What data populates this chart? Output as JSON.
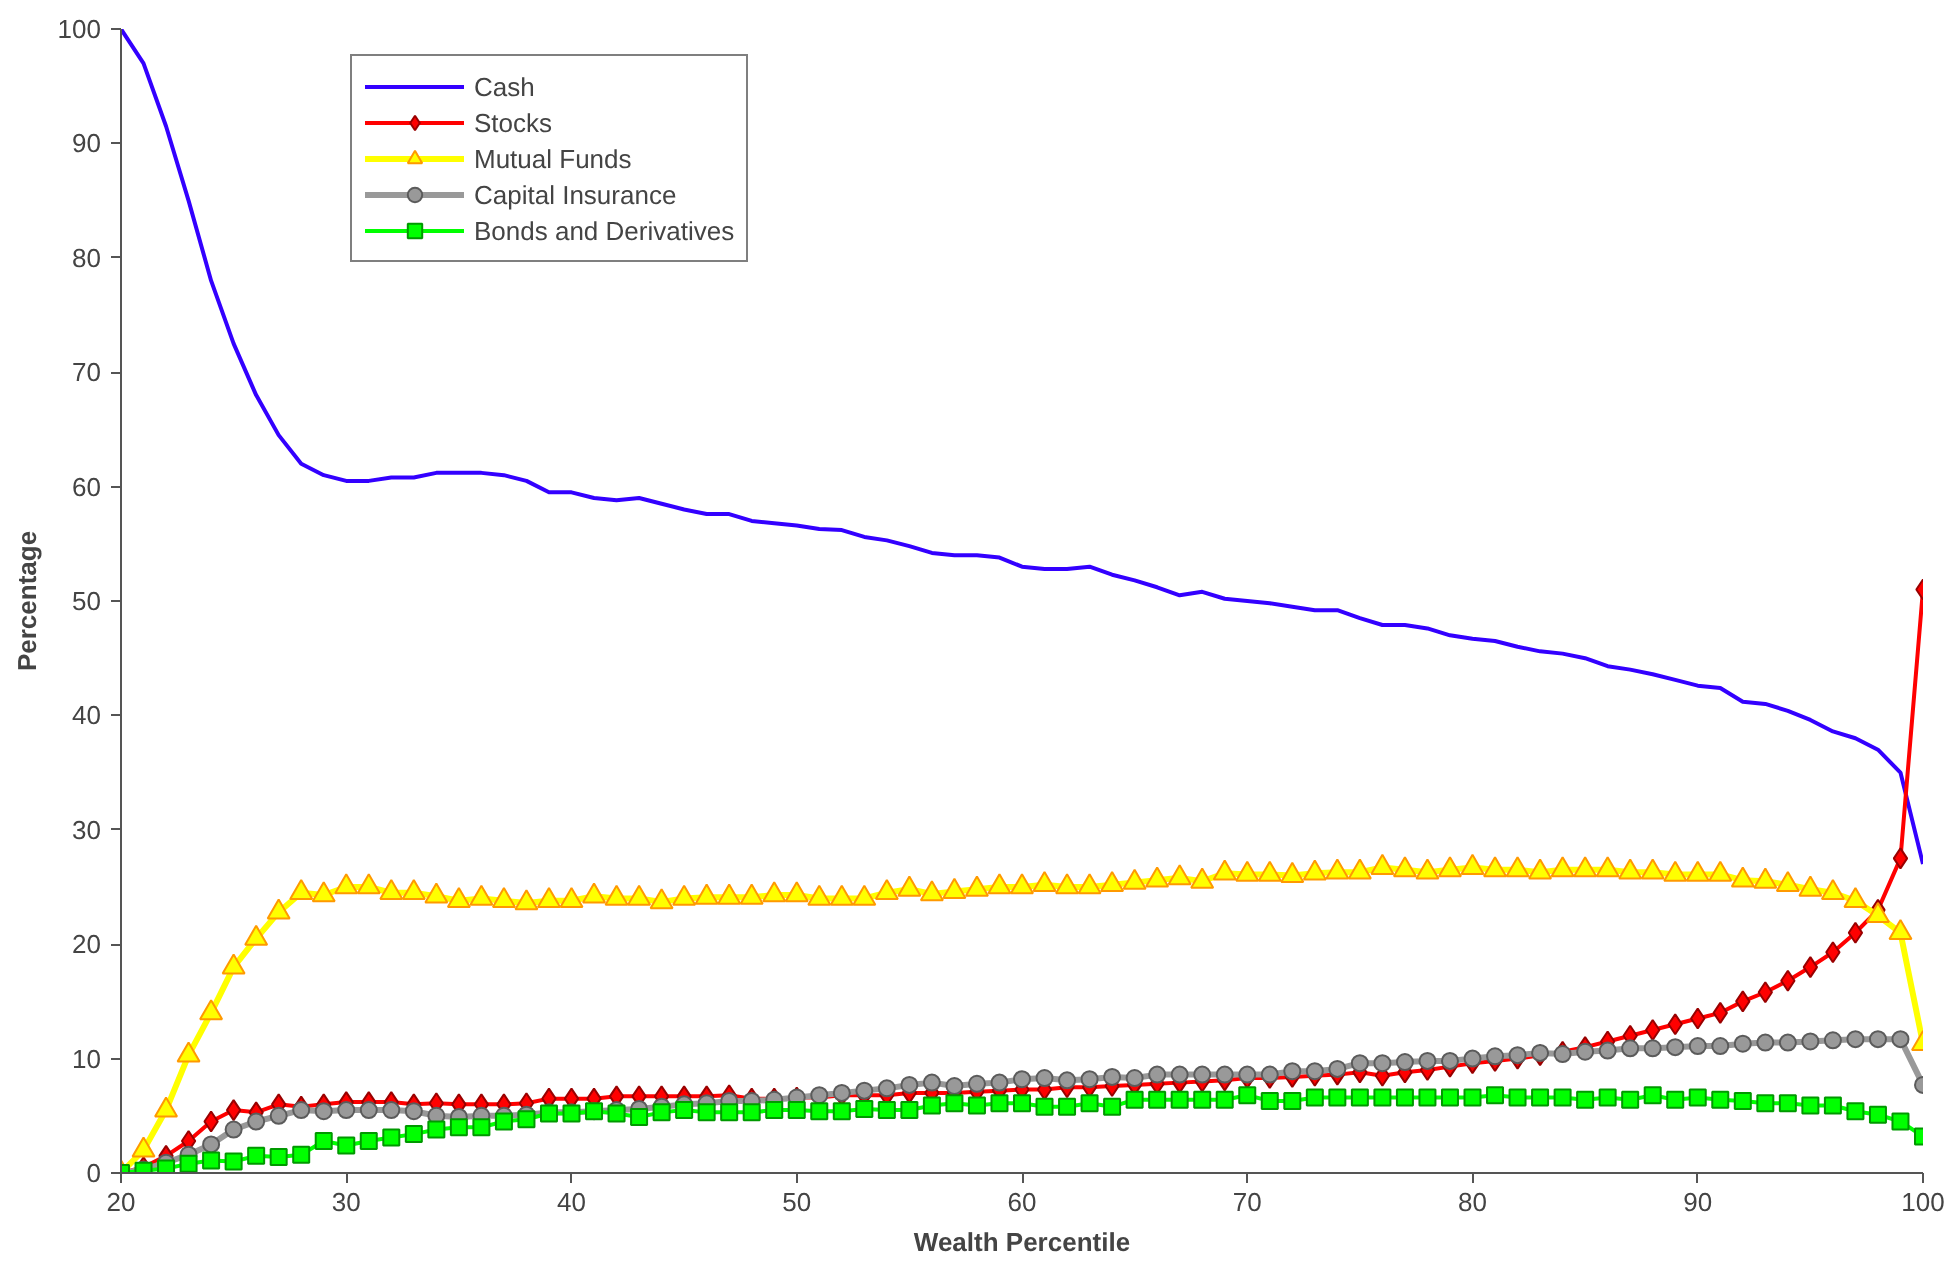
{
  "chart_data": {
    "type": "line",
    "xlabel": "Wealth Percentile",
    "ylabel": "Percentage",
    "x": [
      20,
      21,
      22,
      23,
      24,
      25,
      26,
      27,
      28,
      29,
      30,
      31,
      32,
      33,
      34,
      35,
      36,
      37,
      38,
      39,
      40,
      41,
      42,
      43,
      44,
      45,
      46,
      47,
      48,
      49,
      50,
      51,
      52,
      53,
      54,
      55,
      56,
      57,
      58,
      59,
      60,
      61,
      62,
      63,
      64,
      65,
      66,
      67,
      68,
      69,
      70,
      71,
      72,
      73,
      74,
      75,
      76,
      77,
      78,
      79,
      80,
      81,
      82,
      83,
      84,
      85,
      86,
      87,
      88,
      89,
      90,
      91,
      92,
      93,
      94,
      95,
      96,
      97,
      98,
      99,
      100
    ],
    "xlim": [
      20,
      100
    ],
    "xticks": [
      20,
      30,
      40,
      50,
      60,
      70,
      80,
      90,
      100
    ],
    "ylim": [
      0,
      100
    ],
    "yticks": [
      0,
      10,
      20,
      30,
      40,
      50,
      60,
      70,
      80,
      90,
      100
    ],
    "grid": false,
    "legend": "top left",
    "series": [
      {
        "name": "Cash",
        "color": "#3300ff",
        "marker": "none",
        "values": [
          100,
          97,
          91.5,
          85,
          78,
          72.5,
          68,
          64.5,
          62,
          61,
          60.5,
          60.5,
          60.8,
          60.8,
          61.2,
          61.2,
          61.2,
          61,
          60.5,
          59.5,
          59.5,
          59,
          58.8,
          59,
          58.5,
          58,
          57.6,
          57.6,
          57,
          56.8,
          56.6,
          56.3,
          56.2,
          55.6,
          55.3,
          54.8,
          54.2,
          54,
          54,
          53.8,
          53,
          52.8,
          52.8,
          53,
          52.3,
          51.8,
          51.2,
          50.5,
          50.8,
          50.2,
          50,
          49.8,
          49.5,
          49.2,
          49.2,
          48.5,
          47.9,
          47.9,
          47.6,
          47,
          46.7,
          46.5,
          46,
          45.6,
          45.4,
          45,
          44.3,
          44,
          43.6,
          43.1,
          42.6,
          42.4,
          41.2,
          41,
          40.4,
          39.6,
          38.6,
          38,
          37,
          35,
          27
        ]
      },
      {
        "name": "Stocks",
        "color": "#ff0000",
        "marker": "diamond",
        "values": [
          0,
          0.5,
          1.5,
          2.8,
          4.5,
          5.5,
          5.3,
          6,
          5.8,
          6,
          6.2,
          6.2,
          6.2,
          6,
          6.1,
          6,
          6,
          6,
          6.1,
          6.5,
          6.5,
          6.5,
          6.7,
          6.7,
          6.7,
          6.7,
          6.7,
          6.8,
          6.5,
          6.5,
          6.6,
          6.6,
          6.8,
          6.8,
          6.8,
          7,
          7,
          7,
          7.1,
          7.2,
          7.3,
          7.3,
          7.5,
          7.5,
          7.6,
          7.7,
          7.8,
          7.9,
          8,
          8.1,
          8.3,
          8.3,
          8.4,
          8.5,
          8.6,
          8.8,
          8.5,
          8.8,
          9,
          9.3,
          9.6,
          9.8,
          10,
          10.3,
          10.6,
          11,
          11.5,
          12,
          12.5,
          13,
          13.5,
          14,
          15,
          15.8,
          16.8,
          18,
          19.3,
          21,
          23,
          27.5,
          51
        ]
      },
      {
        "name": "Mutual Funds",
        "color": "#ffff00",
        "marker": "triangle",
        "values": [
          0,
          2,
          5.5,
          10.3,
          14,
          18,
          20.5,
          22.8,
          24.5,
          24.3,
          25,
          25,
          24.5,
          24.5,
          24.2,
          23.8,
          24,
          23.8,
          23.6,
          23.8,
          23.8,
          24.2,
          24,
          24,
          23.7,
          24,
          24.1,
          24.1,
          24.1,
          24.3,
          24.3,
          24,
          24,
          24,
          24.5,
          24.8,
          24.4,
          24.6,
          24.8,
          25,
          25,
          25.2,
          25,
          25,
          25.2,
          25.4,
          25.6,
          25.8,
          25.5,
          26.2,
          26.1,
          26.1,
          26,
          26.2,
          26.3,
          26.3,
          26.7,
          26.5,
          26.3,
          26.5,
          26.7,
          26.5,
          26.5,
          26.3,
          26.5,
          26.5,
          26.5,
          26.3,
          26.3,
          26.1,
          26.1,
          26.1,
          25.6,
          25.5,
          25.2,
          24.8,
          24.5,
          23.8,
          22.5,
          21,
          11.3
        ]
      },
      {
        "name": "Capital Insurance",
        "color": "#999999",
        "marker": "circle",
        "values": [
          0,
          0.3,
          0.9,
          1.6,
          2.5,
          3.8,
          4.5,
          5,
          5.5,
          5.4,
          5.5,
          5.5,
          5.5,
          5.4,
          5,
          4.9,
          5,
          5,
          5.1,
          5.3,
          5.3,
          5.4,
          5.5,
          5.6,
          5.8,
          6,
          6.1,
          6.3,
          6.3,
          6.4,
          6.6,
          6.8,
          7,
          7.2,
          7.4,
          7.7,
          7.9,
          7.6,
          7.8,
          7.9,
          8.2,
          8.3,
          8.1,
          8.2,
          8.4,
          8.3,
          8.6,
          8.6,
          8.6,
          8.6,
          8.6,
          8.6,
          8.9,
          8.9,
          9.1,
          9.6,
          9.6,
          9.7,
          9.8,
          9.8,
          10,
          10.2,
          10.3,
          10.5,
          10.4,
          10.6,
          10.7,
          10.9,
          10.9,
          11,
          11.1,
          11.1,
          11.3,
          11.4,
          11.4,
          11.5,
          11.6,
          11.7,
          11.7,
          11.7,
          7.7
        ]
      },
      {
        "name": "Bonds and Derivatives",
        "color": "#00ff00",
        "marker": "square",
        "values": [
          0,
          0.2,
          0.4,
          0.8,
          1.1,
          1,
          1.5,
          1.4,
          1.6,
          2.8,
          2.4,
          2.8,
          3.1,
          3.4,
          3.8,
          4,
          4,
          4.5,
          4.7,
          5.2,
          5.2,
          5.4,
          5.2,
          4.9,
          5.3,
          5.5,
          5.3,
          5.3,
          5.3,
          5.5,
          5.5,
          5.4,
          5.4,
          5.6,
          5.5,
          5.5,
          5.9,
          6.1,
          5.9,
          6.1,
          6.1,
          5.8,
          5.8,
          6.1,
          5.8,
          6.4,
          6.4,
          6.4,
          6.4,
          6.4,
          6.8,
          6.3,
          6.3,
          6.6,
          6.6,
          6.6,
          6.6,
          6.6,
          6.6,
          6.6,
          6.6,
          6.8,
          6.6,
          6.6,
          6.6,
          6.4,
          6.6,
          6.4,
          6.8,
          6.4,
          6.6,
          6.4,
          6.3,
          6.1,
          6.1,
          5.9,
          5.9,
          5.4,
          5.1,
          4.5,
          3.2
        ]
      }
    ]
  }
}
